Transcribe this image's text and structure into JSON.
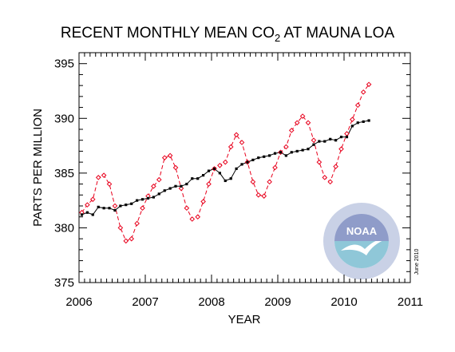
{
  "chart_data": {
    "type": "line",
    "title_main": "RECENT MONTHLY MEAN CO",
    "title_sub": "2",
    "title_tail": " AT MAUNA LOA",
    "xlabel": "YEAR",
    "ylabel": "PARTS PER MILLION",
    "xlim": [
      2006,
      2011
    ],
    "ylim": [
      375,
      396
    ],
    "x_ticks": [
      2006,
      2007,
      2008,
      2009,
      2010,
      2011
    ],
    "y_ticks": [
      375,
      380,
      385,
      390,
      395
    ],
    "date_note": "June 2010",
    "logo_text": "NOAA",
    "grid": false,
    "legend": "none",
    "colors": {
      "monthly_mean": "#e8001c",
      "trend": "#000000"
    },
    "series": [
      {
        "style": "dashed-red-diamonds",
        "x": [
          2006.042,
          2006.125,
          2006.208,
          2006.292,
          2006.375,
          2006.458,
          2006.542,
          2006.625,
          2006.708,
          2006.792,
          2006.875,
          2006.958,
          2007.042,
          2007.125,
          2007.208,
          2007.292,
          2007.375,
          2007.458,
          2007.542,
          2007.625,
          2007.708,
          2007.792,
          2007.875,
          2007.958,
          2008.042,
          2008.125,
          2008.208,
          2008.292,
          2008.375,
          2008.458,
          2008.542,
          2008.625,
          2008.708,
          2008.792,
          2008.875,
          2008.958,
          2009.042,
          2009.125,
          2009.208,
          2009.292,
          2009.375,
          2009.458,
          2009.542,
          2009.625,
          2009.708,
          2009.792,
          2009.875,
          2009.958,
          2010.042,
          2010.125,
          2010.208,
          2010.292,
          2010.375
        ],
        "values": [
          381.4,
          382.1,
          382.6,
          384.6,
          384.8,
          384.0,
          382.0,
          380.0,
          378.8,
          379.0,
          380.4,
          381.8,
          382.9,
          383.8,
          384.4,
          386.4,
          386.6,
          385.5,
          383.6,
          381.8,
          380.8,
          381.0,
          382.4,
          384.0,
          385.4,
          385.7,
          386.0,
          387.4,
          388.5,
          387.8,
          386.0,
          384.2,
          383.0,
          382.9,
          384.2,
          385.5,
          386.9,
          387.4,
          388.9,
          389.6,
          390.2,
          389.6,
          388.0,
          386.0,
          384.6,
          384.2,
          385.6,
          387.2,
          388.6,
          389.9,
          391.2,
          392.4,
          393.1
        ]
      },
      {
        "style": "solid-black-squares",
        "x": [
          2006.042,
          2006.125,
          2006.208,
          2006.292,
          2006.375,
          2006.458,
          2006.542,
          2006.625,
          2006.708,
          2006.792,
          2006.875,
          2006.958,
          2007.042,
          2007.125,
          2007.208,
          2007.292,
          2007.375,
          2007.458,
          2007.542,
          2007.625,
          2007.708,
          2007.792,
          2007.875,
          2007.958,
          2008.042,
          2008.125,
          2008.208,
          2008.292,
          2008.375,
          2008.458,
          2008.542,
          2008.625,
          2008.708,
          2008.792,
          2008.875,
          2008.958,
          2009.042,
          2009.125,
          2009.208,
          2009.292,
          2009.375,
          2009.458,
          2009.542,
          2009.625,
          2009.708,
          2009.792,
          2009.875,
          2009.958,
          2010.042,
          2010.125,
          2010.208,
          2010.292,
          2010.375
        ],
        "values": [
          381.2,
          381.4,
          381.2,
          381.9,
          381.8,
          381.8,
          381.6,
          382.0,
          382.1,
          382.2,
          382.5,
          382.6,
          382.7,
          382.8,
          383.1,
          383.4,
          383.6,
          383.8,
          383.8,
          384.0,
          384.5,
          384.5,
          384.8,
          385.2,
          385.4,
          385.0,
          384.3,
          384.5,
          385.4,
          385.8,
          386.0,
          386.2,
          386.4,
          386.5,
          386.6,
          386.8,
          386.9,
          386.6,
          386.9,
          387.0,
          387.1,
          387.2,
          387.6,
          387.9,
          387.9,
          388.1,
          388.0,
          388.3,
          388.3,
          389.3,
          389.6,
          389.7,
          389.8
        ]
      }
    ]
  }
}
